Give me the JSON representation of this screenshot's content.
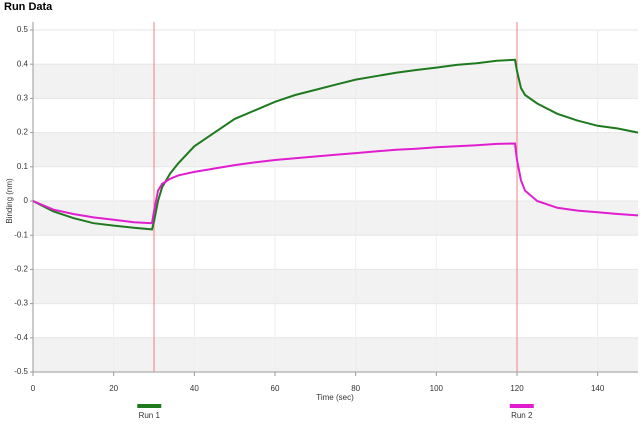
{
  "chart_data": {
    "type": "line",
    "title": "Run Data",
    "x_label": "Time (sec)",
    "y_label": "Binding (nm)",
    "x": [
      0,
      5,
      10,
      15,
      20,
      25,
      29.5,
      30,
      31,
      32,
      34,
      36,
      40,
      45,
      50,
      55,
      60,
      65,
      70,
      75,
      80,
      85,
      90,
      95,
      100,
      105,
      110,
      115,
      119.5,
      120,
      121,
      122,
      125,
      130,
      135,
      140,
      145,
      150
    ],
    "series": [
      {
        "name": "Run 1",
        "color": "#1e7a1e",
        "values": [
          0,
          -0.03,
          -0.05,
          -0.065,
          -0.072,
          -0.078,
          -0.083,
          -0.06,
          0.0,
          0.04,
          0.08,
          0.11,
          0.16,
          0.2,
          0.24,
          0.265,
          0.29,
          0.31,
          0.325,
          0.34,
          0.355,
          0.365,
          0.375,
          0.383,
          0.39,
          0.398,
          0.403,
          0.41,
          0.413,
          0.38,
          0.33,
          0.31,
          0.285,
          0.255,
          0.235,
          0.22,
          0.212,
          0.2
        ]
      },
      {
        "name": "Run 2",
        "color": "#e01ed0",
        "values": [
          0,
          -0.025,
          -0.038,
          -0.048,
          -0.055,
          -0.062,
          -0.065,
          -0.03,
          0.03,
          0.05,
          0.065,
          0.075,
          0.085,
          0.095,
          0.105,
          0.113,
          0.12,
          0.125,
          0.13,
          0.135,
          0.14,
          0.145,
          0.15,
          0.153,
          0.157,
          0.16,
          0.163,
          0.167,
          0.168,
          0.12,
          0.06,
          0.03,
          0.0,
          -0.02,
          -0.028,
          -0.033,
          -0.038,
          -0.042
        ]
      }
    ],
    "vlines": [
      30,
      120
    ],
    "vline_color": "#f08080",
    "xlim": [
      0,
      150
    ],
    "xticks": [
      0,
      20,
      40,
      60,
      80,
      100,
      120,
      140
    ],
    "ylim": [
      -0.5,
      0.5
    ],
    "yticks": [
      0.5,
      0.4,
      0.3,
      0.2,
      0.1,
      0,
      -0.1,
      -0.2,
      -0.3,
      -0.4,
      -0.5
    ],
    "grid": true,
    "legend": "bottom"
  }
}
